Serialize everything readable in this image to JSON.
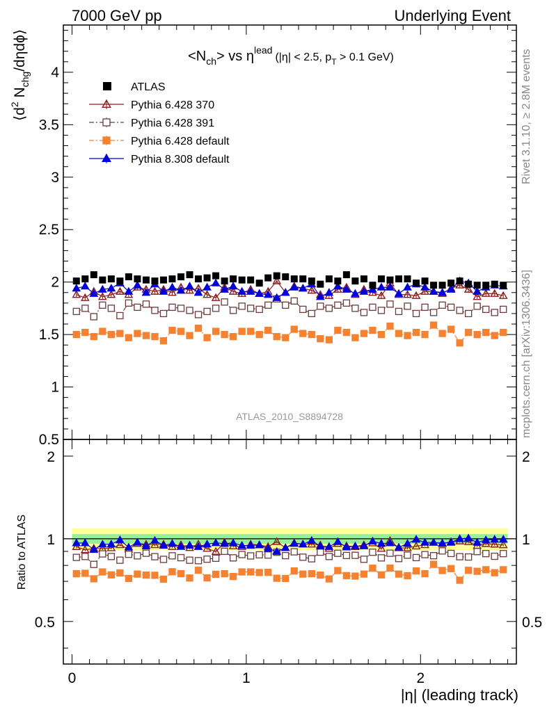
{
  "header": {
    "left": "7000 GeV pp",
    "right": "Underlying Event"
  },
  "side": {
    "rivet": "Rivet 3.1.10, ≥ 2.8M events",
    "mcplots": "mcplots.cern.ch [arXiv:1306.3436]"
  },
  "watermark": "ATLAS_2010_S8894728",
  "chart_data": {
    "type": "scatter",
    "title": {
      "main": "<N",
      "main_sub": "ch",
      "main_mid": "> vs η",
      "main_sup": "lead",
      "cond": "(|η| < 2.5, p",
      "cond_sub": "T",
      "cond_end": " > 0.1 GeV)"
    },
    "xlabel": "|η| (leading track)",
    "ylabel": {
      "a": "⟨d",
      "sup": "2",
      "b": " N",
      "sub": "chg",
      "c": "/dηdϕ⟩"
    },
    "ratio_ylabel": "Ratio to ATLAS",
    "xlim": [
      -0.05,
      2.55
    ],
    "ylim": [
      0.5,
      4.45
    ],
    "ratio_ylim": [
      0.35,
      2.3
    ],
    "xticks": [
      0,
      1,
      2
    ],
    "yticks": [
      0.5,
      1,
      1.5,
      2,
      2.5,
      3,
      3.5,
      4
    ],
    "ratio_yticks": [
      0.5,
      1,
      2
    ],
    "legend_position": "top-left",
    "x": [
      0.025,
      0.075,
      0.125,
      0.175,
      0.225,
      0.275,
      0.325,
      0.375,
      0.425,
      0.475,
      0.525,
      0.575,
      0.625,
      0.675,
      0.725,
      0.775,
      0.825,
      0.875,
      0.925,
      0.975,
      1.025,
      1.075,
      1.125,
      1.175,
      1.225,
      1.275,
      1.325,
      1.375,
      1.425,
      1.475,
      1.525,
      1.575,
      1.625,
      1.675,
      1.725,
      1.775,
      1.825,
      1.875,
      1.925,
      1.975,
      2.025,
      2.075,
      2.125,
      2.175,
      2.225,
      2.275,
      2.325,
      2.375,
      2.425,
      2.475
    ],
    "reference": {
      "name": "ATLAS",
      "values": [
        2.01,
        2.03,
        2.07,
        2.02,
        2.03,
        2.01,
        2.05,
        2.03,
        2.02,
        2.01,
        2.02,
        2.03,
        2.05,
        2.07,
        2.03,
        2.04,
        2.06,
        2.01,
        2.03,
        2.02,
        2.02,
        1.99,
        2.04,
        2.06,
        2.05,
        2.03,
        2.03,
        2.01,
        1.98,
        2.03,
        2.01,
        2.07,
        2.01,
        2.03,
        1.97,
        2.03,
        2.02,
        2.03,
        2.03,
        1.99,
        2.01,
        1.97,
        1.97,
        1.99,
        2.01,
        1.98,
        1.97,
        1.97,
        1.98,
        1.97
      ],
      "band_stat": 0.04,
      "band_total": 0.09
    },
    "series": [
      {
        "name": "Pythia 6.428 370",
        "color": "#8b1a1a",
        "marker": "triangle-open",
        "dash": "solid",
        "values": [
          1.88,
          1.85,
          1.91,
          1.86,
          1.88,
          1.91,
          1.88,
          1.95,
          1.93,
          1.91,
          1.93,
          1.9,
          1.95,
          1.92,
          1.94,
          1.88,
          1.85,
          1.95,
          1.91,
          1.89,
          1.93,
          1.89,
          1.91,
          2.01,
          1.9,
          1.96,
          1.94,
          1.92,
          1.88,
          1.87,
          1.93,
          1.95,
          1.88,
          1.93,
          1.9,
          1.87,
          1.99,
          1.88,
          1.88,
          1.87,
          1.91,
          1.91,
          1.89,
          1.94,
          1.97,
          1.93,
          1.86,
          1.89,
          1.89,
          1.87
        ]
      },
      {
        "name": "Pythia 6.428 391",
        "color": "#6b3a3a",
        "marker": "square-open",
        "dash": "dashdot",
        "values": [
          1.72,
          1.75,
          1.67,
          1.78,
          1.75,
          1.68,
          1.8,
          1.76,
          1.79,
          1.73,
          1.7,
          1.76,
          1.75,
          1.73,
          1.69,
          1.72,
          1.75,
          1.81,
          1.73,
          1.77,
          1.75,
          1.74,
          1.78,
          1.84,
          1.78,
          1.82,
          1.74,
          1.7,
          1.77,
          1.75,
          1.78,
          1.8,
          1.75,
          1.71,
          1.76,
          1.73,
          1.79,
          1.72,
          1.77,
          1.7,
          1.76,
          1.71,
          1.78,
          1.76,
          1.73,
          1.7,
          1.77,
          1.74,
          1.71,
          1.74
        ]
      },
      {
        "name": "Pythia 6.428 default",
        "color": "#f58231",
        "marker": "square-filled",
        "dash": "dashdot",
        "values": [
          1.5,
          1.52,
          1.48,
          1.53,
          1.5,
          1.51,
          1.47,
          1.51,
          1.49,
          1.48,
          1.44,
          1.54,
          1.53,
          1.49,
          1.56,
          1.47,
          1.53,
          1.5,
          1.48,
          1.53,
          1.53,
          1.5,
          1.54,
          1.48,
          1.47,
          1.55,
          1.51,
          1.5,
          1.46,
          1.45,
          1.54,
          1.52,
          1.47,
          1.51,
          1.54,
          1.5,
          1.58,
          1.51,
          1.49,
          1.52,
          1.5,
          1.59,
          1.51,
          1.55,
          1.42,
          1.52,
          1.5,
          1.52,
          1.49,
          1.52
        ]
      },
      {
        "name": "Pythia 8.308 default",
        "color": "#0000dd",
        "marker": "triangle-filled",
        "dash": "solid",
        "values": [
          1.94,
          1.96,
          1.89,
          1.93,
          1.94,
          1.99,
          1.91,
          1.97,
          1.9,
          1.98,
          1.91,
          1.95,
          1.92,
          1.96,
          1.9,
          1.95,
          1.99,
          1.93,
          1.96,
          1.91,
          1.91,
          1.89,
          1.88,
          1.85,
          1.9,
          1.95,
          1.94,
          1.98,
          1.86,
          1.9,
          1.96,
          1.93,
          1.89,
          1.91,
          1.93,
          1.95,
          1.95,
          1.89,
          1.95,
          1.98,
          1.95,
          1.91,
          1.9,
          1.93,
          2.01,
          1.99,
          1.91,
          1.95,
          1.97,
          1.96
        ]
      }
    ]
  }
}
